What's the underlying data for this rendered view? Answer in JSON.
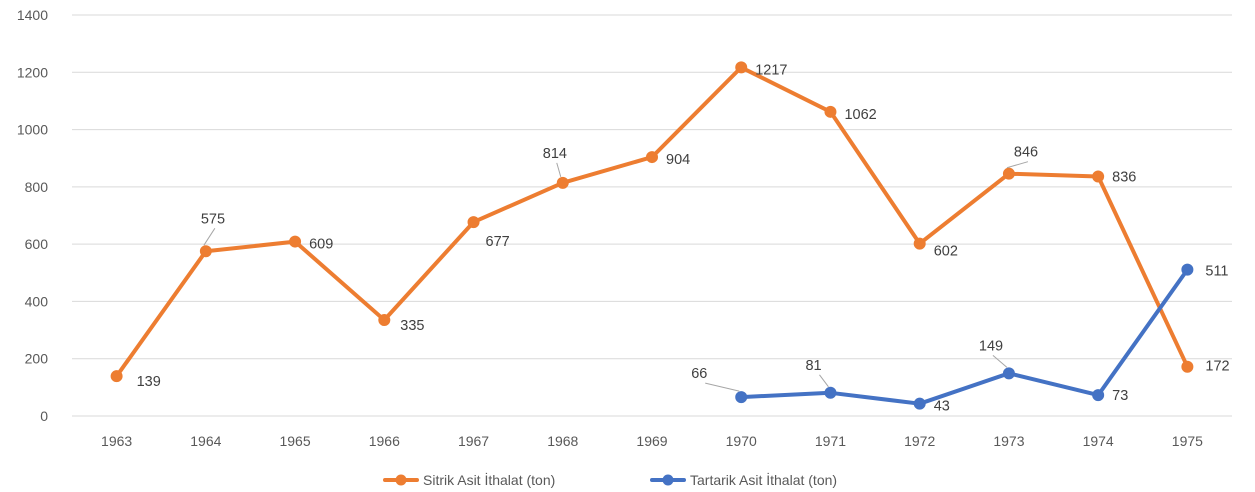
{
  "chart_data": {
    "type": "line",
    "title": "",
    "xlabel": "",
    "ylabel": "",
    "ylim": [
      0,
      1400
    ],
    "yticks": [
      0,
      200,
      400,
      600,
      800,
      1000,
      1200,
      1400
    ],
    "grid": true,
    "legend_position": "bottom",
    "categories": [
      "1963",
      "1964",
      "1965",
      "1966",
      "1967",
      "1968",
      "1969",
      "1970",
      "1971",
      "1972",
      "1973",
      "1974",
      "1975"
    ],
    "series": [
      {
        "name": "Sitrik Asit İthalat (ton)",
        "color": "#ed7d31",
        "values": [
          139,
          575,
          609,
          335,
          677,
          814,
          904,
          1217,
          1062,
          602,
          846,
          836,
          172
        ]
      },
      {
        "name": "Tartarik Asit İthalat (ton)",
        "color": "#4472c4",
        "values": [
          null,
          null,
          null,
          null,
          null,
          null,
          null,
          66,
          81,
          43,
          149,
          73,
          511
        ]
      }
    ]
  }
}
